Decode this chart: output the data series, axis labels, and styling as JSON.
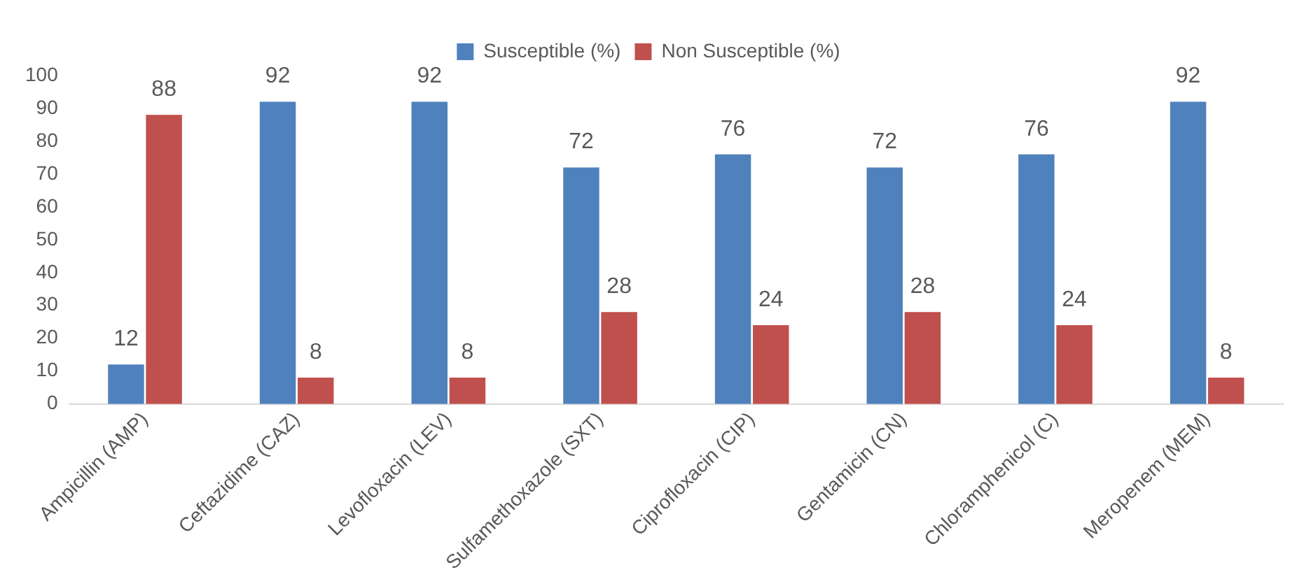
{
  "chart_data": {
    "type": "bar",
    "categories": [
      "Ampicillin (AMP)",
      "Ceftazidime (CAZ)",
      "Levofloxacin (LEV)",
      "Sulfamethoxazole (SXT)",
      "Ciprofloxacin (CIP)",
      "Gentamicin (CN)",
      "Chloramphenicol (C)",
      "Meropenem (MEM)"
    ],
    "series": [
      {
        "name": "Susceptible (%)",
        "color": "#4f81bd",
        "values": [
          12,
          92,
          92,
          72,
          76,
          72,
          76,
          92
        ]
      },
      {
        "name": "Non Susceptible (%)",
        "color": "#c0504d",
        "values": [
          88,
          8,
          8,
          28,
          24,
          28,
          24,
          8
        ]
      }
    ],
    "ylim": [
      0,
      100
    ],
    "yticks": [
      0,
      10,
      20,
      30,
      40,
      50,
      60,
      70,
      80,
      90,
      100
    ],
    "grid": false,
    "legend": "top",
    "data_labels": true
  }
}
